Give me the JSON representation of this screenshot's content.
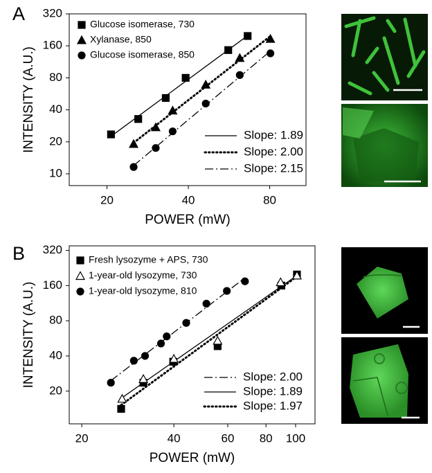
{
  "chart_data": [
    {
      "type": "scatter",
      "panel_label": "A",
      "xlabel": "POWER (mW)",
      "ylabel": "INTENSITY (A.U.)",
      "xscale": "log",
      "yscale": "log",
      "xlim": [
        14.5,
        109
      ],
      "ylim": [
        7.75,
        320
      ],
      "xticks": [
        20,
        40,
        80
      ],
      "yticks": [
        10,
        20,
        40,
        80,
        160,
        320
      ],
      "series": [
        {
          "name": "Glucose isomerase, 730",
          "marker": "square",
          "filled": true,
          "color": "#000000",
          "x": [
            20.7,
            26.1,
            33.0,
            39.1,
            56.2,
            66.3
          ],
          "values": [
            23.5,
            32.8,
            51.7,
            80,
            146,
            198
          ]
        },
        {
          "name": "Xylanase, 850",
          "marker": "triangle",
          "filled": true,
          "color": "#000000",
          "x": [
            25.1,
            30.3,
            35.0,
            46.4,
            62.0,
            80.5
          ],
          "values": [
            19.1,
            27.4,
            39.4,
            69,
            123,
            186
          ]
        },
        {
          "name": "Glucose isomerase, 850",
          "marker": "circle",
          "filled": true,
          "color": "#000000",
          "x": [
            25.1,
            30.3,
            35.0,
            46.4,
            62.0,
            80.5
          ],
          "values": [
            11.6,
            17.5,
            25.1,
            45.8,
            85,
            136
          ]
        }
      ],
      "fits": [
        {
          "label": "Slope:  1.89",
          "style": "solid",
          "series": 0
        },
        {
          "label": "Slope:  2.00",
          "style": "dotted",
          "series": 1
        },
        {
          "label": "Slope:  2.15",
          "style": "dashdot",
          "series": 2
        }
      ]
    },
    {
      "type": "scatter",
      "panel_label": "B",
      "xlabel": "POWER (mW)",
      "ylabel": "INTENSITY (A.U.)",
      "xscale": "log",
      "yscale": "log",
      "xlim": [
        18.2,
        115.7
      ],
      "ylim": [
        10.5,
        350
      ],
      "xticks": [
        20,
        40,
        60,
        80,
        100
      ],
      "yticks": [
        20,
        40,
        80,
        160,
        320
      ],
      "series": [
        {
          "name": "Fresh lysozyme + APS, 730",
          "marker": "square",
          "filled": true,
          "color": "#000000",
          "x": [
            26.9,
            31.8,
            39.8,
            55.6,
            89.8,
            101
          ],
          "values": [
            14.1,
            23.6,
            35.7,
            48.5,
            160,
            199
          ]
        },
        {
          "name": "1-year-old lysozyme, 730",
          "marker": "triangle",
          "filled": false,
          "color": "#000000",
          "x": [
            27.1,
            31.8,
            40.0,
            55.6,
            89.3,
            101
          ],
          "values": [
            17.2,
            25.4,
            37.8,
            54,
            171,
            195
          ]
        },
        {
          "name": "1-year-old lysozyme, 810",
          "marker": "circle",
          "filled": true,
          "color": "#000000",
          "x": [
            24.9,
            29.6,
            32.2,
            36.3,
            37.9,
            43.9,
            51.1,
            59.6,
            68.3
          ],
          "values": [
            23.6,
            36.4,
            40,
            51.1,
            58.8,
            76.7,
            112,
            144,
            174
          ]
        }
      ],
      "fits": [
        {
          "label": "Slope:  2.00",
          "style": "dashdot",
          "series": 2
        },
        {
          "label": "Slope:  1.89",
          "style": "solid",
          "series": 1
        },
        {
          "label": "Slope:  1.97",
          "style": "dotted",
          "series": 0
        }
      ]
    }
  ]
}
